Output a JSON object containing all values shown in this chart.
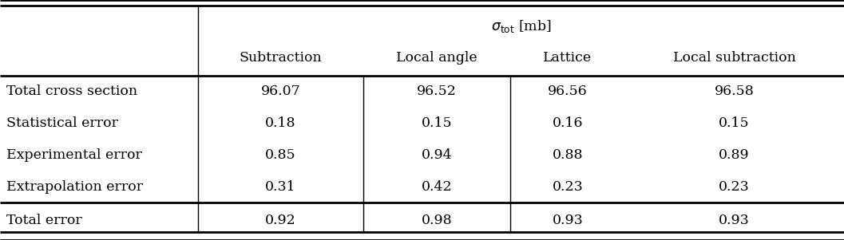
{
  "col_headers": [
    "Subtraction",
    "Local angle",
    "Lattice",
    "Local subtraction"
  ],
  "row_labels": [
    "Total cross section",
    "Statistical error",
    "Experimental error",
    "Extrapolation error",
    "Total error"
  ],
  "data": [
    [
      "96.07",
      "96.52",
      "96.56",
      "96.58"
    ],
    [
      "0.18",
      "0.15",
      "0.16",
      "0.15"
    ],
    [
      "0.85",
      "0.94",
      "0.88",
      "0.89"
    ],
    [
      "0.31",
      "0.42",
      "0.23",
      "0.23"
    ],
    [
      "0.92",
      "0.98",
      "0.93",
      "0.93"
    ]
  ],
  "background_color": "#ffffff",
  "text_color": "#000000",
  "line_color": "#000000",
  "font_size": 12.5,
  "col_bounds": [
    0.0,
    0.235,
    0.43,
    0.605,
    0.74,
    1.0
  ]
}
